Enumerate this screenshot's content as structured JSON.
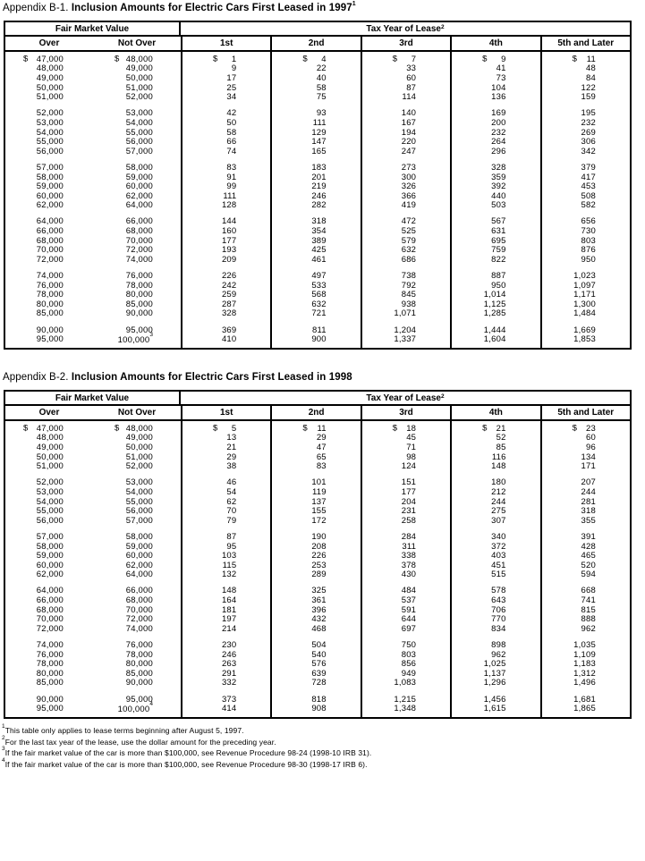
{
  "page": {
    "background": "#ffffff",
    "text_color": "#000000",
    "border_color": "#000000"
  },
  "tables": [
    {
      "title_prefix": "Appendix B-1.",
      "title_main": "Inclusion Amounts for Electric Cars First Leased in 1997",
      "title_sup": "1",
      "header": {
        "fair_market_value": "Fair Market Value",
        "tax_year_of_lease": "Tax Year of Lease",
        "tax_year_sup": "2",
        "columns": [
          "Over",
          "Not Over",
          "1st",
          "2nd",
          "3rd",
          "4th",
          "5th and Later"
        ]
      },
      "groups": [
        {
          "rows": [
            [
              "47,000",
              "48,000",
              "1",
              "4",
              "7",
              "9",
              "11"
            ],
            [
              "48,000",
              "49,000",
              "9",
              "22",
              "33",
              "41",
              "48"
            ],
            [
              "49,000",
              "50,000",
              "17",
              "40",
              "60",
              "73",
              "84"
            ],
            [
              "50,000",
              "51,000",
              "25",
              "58",
              "87",
              "104",
              "122"
            ],
            [
              "51,000",
              "52,000",
              "34",
              "75",
              "114",
              "136",
              "159"
            ]
          ]
        },
        {
          "rows": [
            [
              "52,000",
              "53,000",
              "42",
              "93",
              "140",
              "169",
              "195"
            ],
            [
              "53,000",
              "54,000",
              "50",
              "111",
              "167",
              "200",
              "232"
            ],
            [
              "54,000",
              "55,000",
              "58",
              "129",
              "194",
              "232",
              "269"
            ],
            [
              "55,000",
              "56,000",
              "66",
              "147",
              "220",
              "264",
              "306"
            ],
            [
              "56,000",
              "57,000",
              "74",
              "165",
              "247",
              "296",
              "342"
            ]
          ]
        },
        {
          "rows": [
            [
              "57,000",
              "58,000",
              "83",
              "183",
              "273",
              "328",
              "379"
            ],
            [
              "58,000",
              "59,000",
              "91",
              "201",
              "300",
              "359",
              "417"
            ],
            [
              "59,000",
              "60,000",
              "99",
              "219",
              "326",
              "392",
              "453"
            ],
            [
              "60,000",
              "62,000",
              "111",
              "246",
              "366",
              "440",
              "508"
            ],
            [
              "62,000",
              "64,000",
              "128",
              "282",
              "419",
              "503",
              "582"
            ]
          ]
        },
        {
          "rows": [
            [
              "64,000",
              "66,000",
              "144",
              "318",
              "472",
              "567",
              "656"
            ],
            [
              "66,000",
              "68,000",
              "160",
              "354",
              "525",
              "631",
              "730"
            ],
            [
              "68,000",
              "70,000",
              "177",
              "389",
              "579",
              "695",
              "803"
            ],
            [
              "70,000",
              "72,000",
              "193",
              "425",
              "632",
              "759",
              "876"
            ],
            [
              "72,000",
              "74,000",
              "209",
              "461",
              "686",
              "822",
              "950"
            ]
          ]
        },
        {
          "rows": [
            [
              "74,000",
              "76,000",
              "226",
              "497",
              "738",
              "887",
              "1,023"
            ],
            [
              "76,000",
              "78,000",
              "242",
              "533",
              "792",
              "950",
              "1,097"
            ],
            [
              "78,000",
              "80,000",
              "259",
              "568",
              "845",
              "1,014",
              "1,171"
            ],
            [
              "80,000",
              "85,000",
              "287",
              "632",
              "938",
              "1,125",
              "1,300"
            ],
            [
              "85,000",
              "90,000",
              "328",
              "721",
              "1,071",
              "1,285",
              "1,484"
            ]
          ]
        },
        {
          "rows": [
            [
              "90,000",
              "95,000",
              "369",
              "811",
              "1,204",
              "1,444",
              "1,669"
            ],
            [
              "95,000",
              "100,000^3",
              "410",
              "900",
              "1,337",
              "1,604",
              "1,853"
            ]
          ]
        }
      ]
    },
    {
      "title_prefix": "Appendix B-2.",
      "title_main": "Inclusion Amounts for Electric Cars First Leased in 1998",
      "title_sup": "",
      "header": {
        "fair_market_value": "Fair Market Value",
        "tax_year_of_lease": "Tax Year of Lease",
        "tax_year_sup": "2",
        "columns": [
          "Over",
          "Not Over",
          "1st",
          "2nd",
          "3rd",
          "4th",
          "5th and Later"
        ]
      },
      "groups": [
        {
          "rows": [
            [
              "47,000",
              "48,000",
              "5",
              "11",
              "18",
              "21",
              "23"
            ],
            [
              "48,000",
              "49,000",
              "13",
              "29",
              "45",
              "52",
              "60"
            ],
            [
              "49,000",
              "50,000",
              "21",
              "47",
              "71",
              "85",
              "96"
            ],
            [
              "50,000",
              "51,000",
              "29",
              "65",
              "98",
              "116",
              "134"
            ],
            [
              "51,000",
              "52,000",
              "38",
              "83",
              "124",
              "148",
              "171"
            ]
          ]
        },
        {
          "rows": [
            [
              "52,000",
              "53,000",
              "46",
              "101",
              "151",
              "180",
              "207"
            ],
            [
              "53,000",
              "54,000",
              "54",
              "119",
              "177",
              "212",
              "244"
            ],
            [
              "54,000",
              "55,000",
              "62",
              "137",
              "204",
              "244",
              "281"
            ],
            [
              "55,000",
              "56,000",
              "70",
              "155",
              "231",
              "275",
              "318"
            ],
            [
              "56,000",
              "57,000",
              "79",
              "172",
              "258",
              "307",
              "355"
            ]
          ]
        },
        {
          "rows": [
            [
              "57,000",
              "58,000",
              "87",
              "190",
              "284",
              "340",
              "391"
            ],
            [
              "58,000",
              "59,000",
              "95",
              "208",
              "311",
              "372",
              "428"
            ],
            [
              "59,000",
              "60,000",
              "103",
              "226",
              "338",
              "403",
              "465"
            ],
            [
              "60,000",
              "62,000",
              "115",
              "253",
              "378",
              "451",
              "520"
            ],
            [
              "62,000",
              "64,000",
              "132",
              "289",
              "430",
              "515",
              "594"
            ]
          ]
        },
        {
          "rows": [
            [
              "64,000",
              "66,000",
              "148",
              "325",
              "484",
              "578",
              "668"
            ],
            [
              "66,000",
              "68,000",
              "164",
              "361",
              "537",
              "643",
              "741"
            ],
            [
              "68,000",
              "70,000",
              "181",
              "396",
              "591",
              "706",
              "815"
            ],
            [
              "70,000",
              "72,000",
              "197",
              "432",
              "644",
              "770",
              "888"
            ],
            [
              "72,000",
              "74,000",
              "214",
              "468",
              "697",
              "834",
              "962"
            ]
          ]
        },
        {
          "rows": [
            [
              "74,000",
              "76,000",
              "230",
              "504",
              "750",
              "898",
              "1,035"
            ],
            [
              "76,000",
              "78,000",
              "246",
              "540",
              "803",
              "962",
              "1,109"
            ],
            [
              "78,000",
              "80,000",
              "263",
              "576",
              "856",
              "1,025",
              "1,183"
            ],
            [
              "80,000",
              "85,000",
              "291",
              "639",
              "949",
              "1,137",
              "1,312"
            ],
            [
              "85,000",
              "90,000",
              "332",
              "728",
              "1,083",
              "1,296",
              "1,496"
            ]
          ]
        },
        {
          "rows": [
            [
              "90,000",
              "95,000",
              "373",
              "818",
              "1,215",
              "1,456",
              "1,681"
            ],
            [
              "95,000",
              "100,000^4",
              "414",
              "908",
              "1,348",
              "1,615",
              "1,865"
            ]
          ]
        }
      ]
    }
  ],
  "footnotes": [
    {
      "sup": "1",
      "text": "This table only applies to lease terms beginning after August 5, 1997."
    },
    {
      "sup": "2",
      "text": "For the last tax year of the lease, use the dollar amount for the preceding year."
    },
    {
      "sup": "3",
      "text": "If the fair market value of the car is more than $100,000, see Revenue Procedure 98-24 (1998-10 IRB 31)."
    },
    {
      "sup": "4",
      "text": "If the fair market value of the car is more than $100,000, see Revenue Procedure 98-30 (1998-17 IRB 6)."
    }
  ]
}
